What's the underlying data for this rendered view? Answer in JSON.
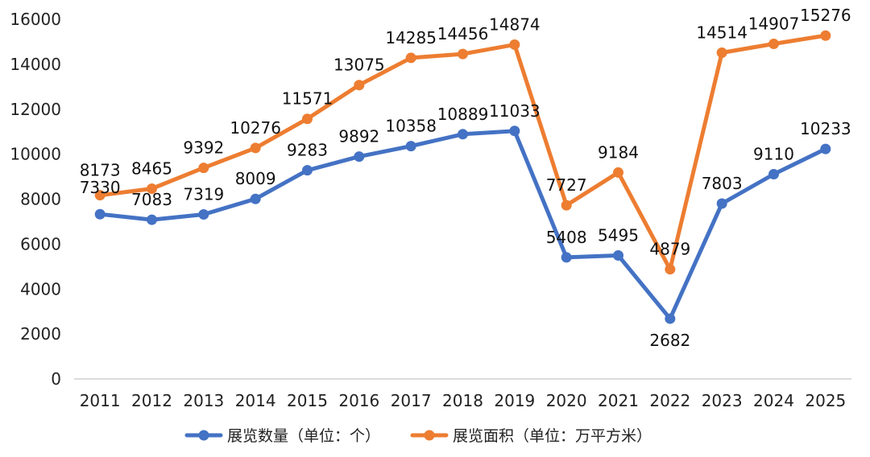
{
  "chart_data": {
    "type": "line",
    "title": "",
    "xlabel": "",
    "ylabel": "",
    "ylim": [
      0,
      16000
    ],
    "yticks": [
      0,
      2000,
      4000,
      6000,
      8000,
      10000,
      12000,
      14000,
      16000
    ],
    "grid": false,
    "legend_position": "bottom",
    "categories": [
      "2011",
      "2012",
      "2013",
      "2014",
      "2015",
      "2016",
      "2017",
      "2018",
      "2019",
      "2020",
      "2021",
      "2022",
      "2023",
      "2024",
      "2025"
    ],
    "series": [
      {
        "name": "展览数量（单位：个）",
        "color": "#4472C4",
        "values": [
          7330,
          7083,
          7319,
          8009,
          9283,
          9892,
          10358,
          10889,
          11033,
          5408,
          5495,
          2682,
          7803,
          9110,
          10233
        ]
      },
      {
        "name": "展览面积（单位：万平方米）",
        "color": "#ED7D31",
        "values": [
          8173,
          8465,
          9392,
          10276,
          11571,
          13075,
          14285,
          14456,
          14874,
          7727,
          9184,
          4879,
          14514,
          14907,
          15276
        ]
      }
    ]
  }
}
